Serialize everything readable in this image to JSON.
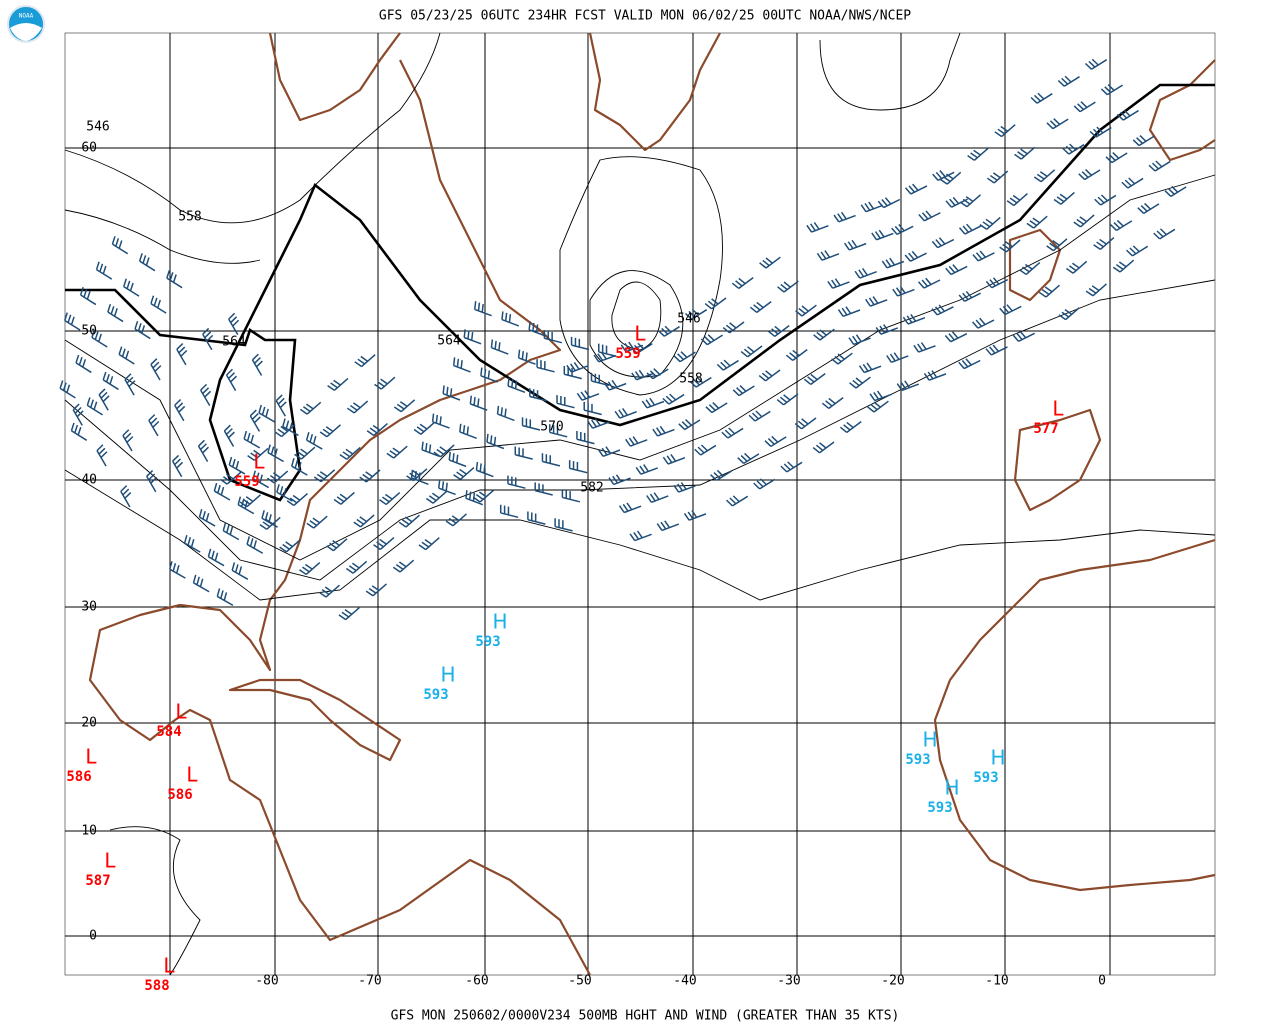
{
  "header": {
    "title": "GFS 05/23/25 06UTC 234HR FCST VALID MON 06/02/25 00UTC NOAA/NWS/NCEP",
    "logo": "NOAA"
  },
  "footer": {
    "caption": "GFS MON 250602/0000V234 500MB HGHT AND WIND (GREATER THAN 35 KTS)"
  },
  "latitude_labels": [
    "60",
    "50",
    "40",
    "30",
    "20",
    "10",
    "0"
  ],
  "longitude_labels": [
    "-80",
    "-70",
    "-60",
    "-50",
    "-40",
    "-30",
    "-20",
    "-10",
    "0"
  ],
  "contour_labels": [
    "546",
    "558",
    "564",
    "564",
    "546",
    "558",
    "570",
    "582"
  ],
  "centers": [
    {
      "letter": "L",
      "value": "559"
    },
    {
      "letter": "L",
      "value": "559"
    },
    {
      "letter": "L",
      "value": "577"
    },
    {
      "letter": "H",
      "value": "593"
    },
    {
      "letter": "H",
      "value": "593"
    },
    {
      "letter": "L",
      "value": "584"
    },
    {
      "letter": "L",
      "value": "586"
    },
    {
      "letter": "L",
      "value": "586"
    },
    {
      "letter": "L",
      "value": "587"
    },
    {
      "letter": "L",
      "value": "588"
    },
    {
      "letter": "H",
      "value": "593"
    },
    {
      "letter": "H",
      "value": "593"
    },
    {
      "letter": "H",
      "value": "593"
    }
  ]
}
